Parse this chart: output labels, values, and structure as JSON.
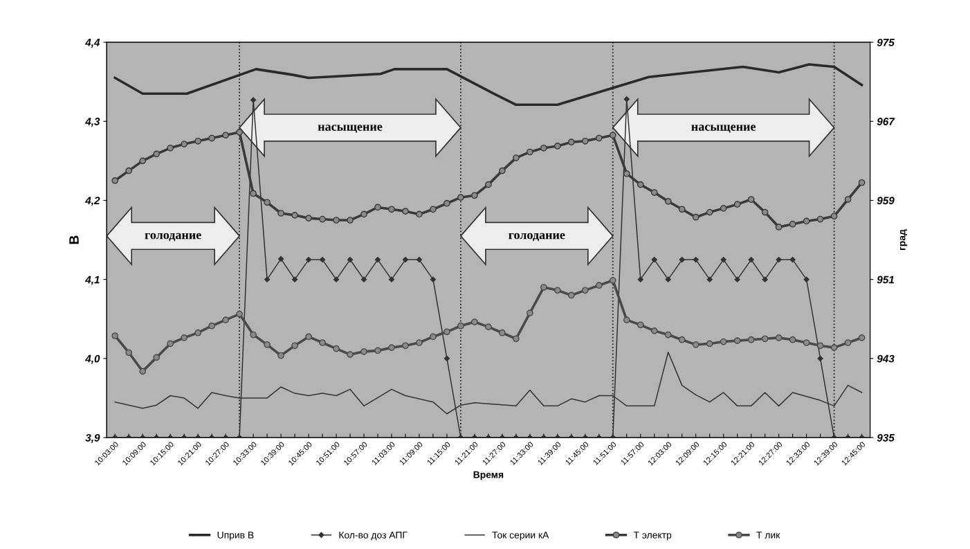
{
  "chart_data": {
    "type": "line",
    "xlabel": "Время",
    "ylabel": "В",
    "y2label": "град",
    "legend": "bottom",
    "x": [
      10.05,
      10.1,
      10.15,
      10.2,
      10.25,
      10.3,
      10.35,
      10.4,
      10.45,
      10.5,
      10.55,
      10.6,
      10.65,
      10.7,
      10.75,
      10.8,
      10.85,
      10.9,
      10.95,
      11.0,
      11.05,
      11.1,
      11.15,
      11.2,
      11.25,
      11.3,
      11.35,
      11.4,
      11.45,
      11.5,
      11.55,
      11.6,
      11.65,
      11.7,
      11.75,
      11.8,
      11.85,
      11.9,
      11.95,
      12.0,
      12.05,
      12.1,
      12.15,
      12.2,
      12.25,
      12.3,
      12.35,
      12.4,
      12.45,
      12.5,
      12.55,
      12.6,
      12.65,
      12.7,
      12.75
    ],
    "xlim": [
      10.02,
      12.78
    ],
    "xticks": [
      {
        "value": 10.05,
        "label": "10:03:00"
      },
      {
        "value": 10.1,
        "label": null
      },
      {
        "value": 10.15,
        "label": "10:09:00"
      },
      {
        "value": 10.2,
        "label": null
      },
      {
        "value": 10.25,
        "label": "10:15:00"
      },
      {
        "value": 10.3,
        "label": null
      },
      {
        "value": 10.35,
        "label": "10:21:00"
      },
      {
        "value": 10.4,
        "label": null
      },
      {
        "value": 10.45,
        "label": "10:27:00"
      },
      {
        "value": 10.5,
        "label": null
      },
      {
        "value": 10.55,
        "label": "10:33:00"
      },
      {
        "value": 10.6,
        "label": null
      },
      {
        "value": 10.65,
        "label": "10:39:00"
      },
      {
        "value": 10.7,
        "label": null
      },
      {
        "value": 10.75,
        "label": "10:45:00"
      },
      {
        "value": 10.8,
        "label": null
      },
      {
        "value": 10.85,
        "label": "10:51:00"
      },
      {
        "value": 10.9,
        "label": null
      },
      {
        "value": 10.95,
        "label": "10:57:00"
      },
      {
        "value": 11.0,
        "label": null
      },
      {
        "value": 11.05,
        "label": "11:03:00"
      },
      {
        "value": 11.1,
        "label": null
      },
      {
        "value": 11.15,
        "label": "11:09:00"
      },
      {
        "value": 11.2,
        "label": null
      },
      {
        "value": 11.25,
        "label": "11:15:00"
      },
      {
        "value": 11.3,
        "label": null
      },
      {
        "value": 11.35,
        "label": "11:21:00"
      },
      {
        "value": 11.4,
        "label": null
      },
      {
        "value": 11.45,
        "label": "11:27:00"
      },
      {
        "value": 11.5,
        "label": null
      },
      {
        "value": 11.55,
        "label": "11:33:00"
      },
      {
        "value": 11.6,
        "label": null
      },
      {
        "value": 11.65,
        "label": "11:39:00"
      },
      {
        "value": 11.7,
        "label": null
      },
      {
        "value": 11.75,
        "label": "11:45:00"
      },
      {
        "value": 11.8,
        "label": null
      },
      {
        "value": 11.85,
        "label": "11:51:00"
      },
      {
        "value": 11.9,
        "label": null
      },
      {
        "value": 11.95,
        "label": "11:57:00"
      },
      {
        "value": 12.0,
        "label": null
      },
      {
        "value": 12.05,
        "label": "12:03:00"
      },
      {
        "value": 12.1,
        "label": null
      },
      {
        "value": 12.15,
        "label": "12:09:00"
      },
      {
        "value": 12.2,
        "label": null
      },
      {
        "value": 12.25,
        "label": "12:15:00"
      },
      {
        "value": 12.3,
        "label": null
      },
      {
        "value": 12.35,
        "label": "12:21:00"
      },
      {
        "value": 12.4,
        "label": null
      },
      {
        "value": 12.45,
        "label": "12:27:00"
      },
      {
        "value": 12.5,
        "label": null
      },
      {
        "value": 12.55,
        "label": "12:33:00"
      },
      {
        "value": 12.6,
        "label": null
      },
      {
        "value": 12.65,
        "label": "12:39:00"
      },
      {
        "value": 12.7,
        "label": null
      },
      {
        "value": 12.75,
        "label": "12:45:00"
      }
    ],
    "ylim": [
      3.9,
      4.4
    ],
    "yticks": [
      {
        "value": 3.9,
        "label": "3,9"
      },
      {
        "value": 4.0,
        "label": "4,0"
      },
      {
        "value": 4.1,
        "label": "4,1"
      },
      {
        "value": 4.2,
        "label": "4,2"
      },
      {
        "value": 4.3,
        "label": "4,3"
      },
      {
        "value": 4.4,
        "label": "4,4"
      }
    ],
    "y2lim": [
      935,
      975
    ],
    "y2ticks": [
      935,
      943,
      951,
      959,
      967,
      975
    ],
    "series": [
      {
        "name": "Uприв В",
        "color": "#2a2a2a",
        "marker": "none",
        "x": [
          10.05,
          10.15,
          10.31,
          10.56,
          10.69,
          10.75,
          11.01,
          11.06,
          11.25,
          11.42,
          11.5,
          11.65,
          11.98,
          12.32,
          12.45,
          12.56,
          12.65,
          12.75
        ],
        "values": [
          4.355,
          4.335,
          4.335,
          4.366,
          4.359,
          4.355,
          4.36,
          4.366,
          4.366,
          4.335,
          4.321,
          4.321,
          4.356,
          4.369,
          4.362,
          4.372,
          4.369,
          4.346
        ]
      },
      {
        "name": "Кол-во доз АПГ",
        "color": "#333333",
        "marker": "diamond",
        "values": [
          3.9,
          3.9,
          3.9,
          3.9,
          3.9,
          3.9,
          3.9,
          3.9,
          3.9,
          3.9,
          4.327,
          4.1,
          4.126,
          4.1,
          4.125,
          4.125,
          4.1,
          4.125,
          4.1,
          4.125,
          4.1,
          4.125,
          4.125,
          4.1,
          4.0,
          3.9,
          3.9,
          3.9,
          3.9,
          3.9,
          3.9,
          3.9,
          3.9,
          3.9,
          3.9,
          3.9,
          3.9,
          4.328,
          4.1,
          4.125,
          4.1,
          4.125,
          4.125,
          4.1,
          4.125,
          4.1,
          4.125,
          4.1,
          4.125,
          4.125,
          4.1,
          4.0,
          3.9,
          3.9,
          3.9
        ]
      },
      {
        "name": "Ток серии кА",
        "color": "#333333",
        "marker": "none",
        "x": [
          10.05,
          10.15,
          10.2,
          10.25,
          10.3,
          10.35,
          10.4,
          10.45,
          10.5,
          10.6,
          10.65,
          10.7,
          10.75,
          10.8,
          10.85,
          10.9,
          10.95,
          11.05,
          11.1,
          11.2,
          11.25,
          11.3,
          11.35,
          11.5,
          11.55,
          11.6,
          11.65,
          11.7,
          11.75,
          11.8,
          11.85,
          11.9,
          12.0,
          12.05,
          12.1,
          12.15,
          12.2,
          12.25,
          12.3,
          12.35,
          12.4,
          12.45,
          12.5,
          12.6,
          12.65,
          12.7,
          12.75
        ],
        "values": [
          3.945,
          3.937,
          3.941,
          3.953,
          3.95,
          3.937,
          3.957,
          3.953,
          3.95,
          3.95,
          3.964,
          3.956,
          3.953,
          3.956,
          3.953,
          3.961,
          3.94,
          3.961,
          3.953,
          3.945,
          3.93,
          3.941,
          3.944,
          3.94,
          3.96,
          3.94,
          3.94,
          3.949,
          3.945,
          3.953,
          3.953,
          3.94,
          3.94,
          4.008,
          3.966,
          3.954,
          3.945,
          3.957,
          3.94,
          3.94,
          3.957,
          3.94,
          3.957,
          3.947,
          3.94,
          3.966,
          3.957
        ]
      },
      {
        "name": "Т электр",
        "color": "#3a3a3a",
        "marker": "circle",
        "axis": "y2",
        "values": [
          961.0,
          962.0,
          963.0,
          963.7,
          964.3,
          964.7,
          965.0,
          965.3,
          965.6,
          965.9,
          959.7,
          958.8,
          957.7,
          957.5,
          957.2,
          957.1,
          957.0,
          957.0,
          957.6,
          958.3,
          958.1,
          957.9,
          957.6,
          958.1,
          958.7,
          959.3,
          959.5,
          960.6,
          962.0,
          963.3,
          963.9,
          964.3,
          964.5,
          964.9,
          965.0,
          965.3,
          965.6,
          961.7,
          960.6,
          959.8,
          958.9,
          958.1,
          957.3,
          957.8,
          958.2,
          958.6,
          959.1,
          957.8,
          956.3,
          956.6,
          956.9,
          957.1,
          957.4,
          959.1,
          960.8
        ]
      },
      {
        "name": "Т лик",
        "color": "#4a4a4a",
        "marker": "circle",
        "axis": "y2",
        "values": [
          945.3,
          943.6,
          941.7,
          943.1,
          944.5,
          945.1,
          945.6,
          946.3,
          946.9,
          947.5,
          945.4,
          944.4,
          943.3,
          944.3,
          945.2,
          944.6,
          944.0,
          943.4,
          943.7,
          943.8,
          944.1,
          944.3,
          944.6,
          945.2,
          945.7,
          946.3,
          946.7,
          946.2,
          945.6,
          945.0,
          947.6,
          950.2,
          949.9,
          949.4,
          949.9,
          950.4,
          950.9,
          946.9,
          946.4,
          945.8,
          945.4,
          944.9,
          944.4,
          944.5,
          944.7,
          944.8,
          944.9,
          945.0,
          945.1,
          944.9,
          944.6,
          944.3,
          944.1,
          944.6,
          945.1
        ]
      }
    ],
    "ref_lines": [
      {
        "axis": "x",
        "value": 10.5,
        "color": "#222222",
        "line_style": "dotted"
      },
      {
        "axis": "x",
        "value": 11.3,
        "color": "#222222",
        "line_style": "dotted"
      },
      {
        "axis": "x",
        "value": 11.85,
        "color": "#222222",
        "line_style": "dotted"
      },
      {
        "axis": "x",
        "value": 12.65,
        "color": "#222222",
        "line_style": "dotted"
      }
    ],
    "annotations": [
      "голодание",
      "насыщение",
      "голодание",
      "насыщение"
    ]
  }
}
